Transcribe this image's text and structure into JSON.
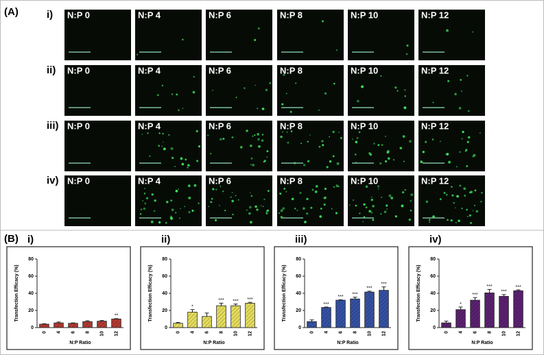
{
  "figure_labels": {
    "panel_a": "(A)",
    "panel_b": "(B)"
  },
  "micrographs": {
    "rows": [
      {
        "label": "i)",
        "images": [
          "N:P 0",
          "N:P 4",
          "N:P 6",
          "N:P 8",
          "N:P 10",
          "N:P 12"
        ]
      },
      {
        "label": "ii)",
        "images": [
          "N:P 0",
          "N:P 4",
          "N:P 6",
          "N:P 8",
          "N:P 10",
          "N:P 12"
        ]
      },
      {
        "label": "iii)",
        "images": [
          "N:P 0",
          "N:P 4",
          "N:P 6",
          "N:P 8",
          "N:P 10",
          "N:P 12"
        ]
      },
      {
        "label": "iv)",
        "images": [
          "N:P 0",
          "N:P 4",
          "N:P 6",
          "N:P 8",
          "N:P 10",
          "N:P 12"
        ]
      }
    ]
  },
  "chart_data": [
    {
      "type": "bar",
      "title": "i)",
      "x_label": "N:P Ratio",
      "y_label": "Transfection Efficacy (%)",
      "categories": [
        "0",
        "4",
        "6",
        "8",
        "10",
        "12"
      ],
      "values": [
        4,
        5.5,
        5,
        7,
        7.5,
        10
      ],
      "errors": [
        0.5,
        1,
        0.5,
        1,
        0.8,
        0.5
      ],
      "annotations": [
        null,
        null,
        null,
        null,
        null,
        "**"
      ],
      "color": "#b03a32",
      "ylim": [
        0,
        80
      ],
      "yticks": [
        0,
        20,
        40,
        60,
        80
      ]
    },
    {
      "type": "bar",
      "title": "ii)",
      "x_label": "N:P Ratio",
      "y_label": "Transfection Efficacy (%)",
      "categories": [
        "0",
        "4",
        "6",
        "8",
        "10",
        "12"
      ],
      "values": [
        5,
        18,
        13,
        25.5,
        25.5,
        28.5
      ],
      "errors": [
        1,
        3,
        4,
        3,
        2,
        1
      ],
      "annotations": [
        null,
        "*",
        null,
        "***",
        "***",
        "***"
      ],
      "color": "#e4dc5c",
      "ylim": [
        0,
        80
      ],
      "yticks": [
        0,
        20,
        40,
        60,
        80
      ]
    },
    {
      "type": "bar",
      "title": "iii)",
      "x_label": "N:P Ratio",
      "y_label": "Transfection Efficacy (%)",
      "categories": [
        "0",
        "4",
        "6",
        "8",
        "10",
        "12"
      ],
      "values": [
        7,
        23.5,
        32,
        33.5,
        41.5,
        43.5
      ],
      "errors": [
        2,
        0.5,
        0.5,
        2,
        1,
        4
      ],
      "annotations": [
        null,
        "***",
        "***",
        "***",
        "***",
        "***"
      ],
      "color": "#3451a3",
      "ylim": [
        0,
        80
      ],
      "yticks": [
        0,
        20,
        40,
        60,
        80
      ]
    },
    {
      "type": "bar",
      "title": "iv)",
      "x_label": "N:P Ratio",
      "y_label": "Transfection Efficacy (%)",
      "categories": [
        "0",
        "4",
        "6",
        "8",
        "10",
        "12"
      ],
      "values": [
        5.5,
        21,
        32,
        40.5,
        36.5,
        43
      ],
      "errors": [
        2,
        3,
        3,
        4,
        2,
        1
      ],
      "annotations": [
        null,
        "*",
        "***",
        "***",
        "***",
        "***"
      ],
      "color": "#5b2170",
      "ylim": [
        0,
        80
      ],
      "yticks": [
        0,
        20,
        40,
        60,
        80
      ]
    }
  ]
}
